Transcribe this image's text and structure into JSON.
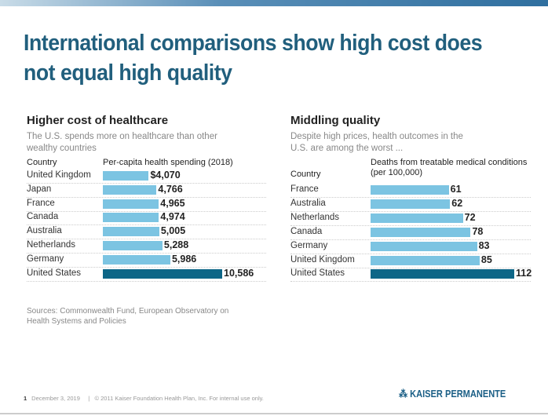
{
  "slide": {
    "title": "International comparisons show high cost does not equal high quality",
    "sources": "Sources: Commonwealth Fund, European Observatory on Health Systems and Policies",
    "footer": {
      "page": "1",
      "date": "December 3, 2019",
      "separator": "|",
      "copyright": "© 2011 Kaiser Foundation Health Plan, Inc. For internal use only."
    },
    "logo": "KAISER PERMANENTE"
  },
  "colors": {
    "bar": "#7cc4e2",
    "highlight": "#0d6687",
    "title": "#215f7d"
  },
  "chart_data": [
    {
      "type": "bar",
      "orientation": "horizontal",
      "title": "Higher cost of healthcare",
      "subtitle": "The U.S. spends more on healthcare than other wealthy countries",
      "category_header": "Country",
      "value_header": "Per-capita health spending (2018)",
      "categories": [
        "United Kingdom",
        "Japan",
        "France",
        "Canada",
        "Australia",
        "Netherlands",
        "Germany",
        "United States"
      ],
      "values": [
        4070,
        4766,
        4965,
        4974,
        5005,
        5288,
        5986,
        10586
      ],
      "labels": [
        "$4,070",
        "4,766",
        "4,965",
        "4,974",
        "5,005",
        "5,288",
        "5,986",
        "10,586"
      ],
      "highlight": "United States",
      "max": 10586
    },
    {
      "type": "bar",
      "orientation": "horizontal",
      "title": "Middling quality",
      "subtitle": "Despite high prices, health outcomes in the U.S. are among the worst ...",
      "category_header": "Country",
      "value_header": "Deaths from treatable medical conditions (per 100,000)",
      "categories": [
        "France",
        "Australia",
        "Netherlands",
        "Canada",
        "Germany",
        "United Kingdom",
        "United States"
      ],
      "values": [
        61,
        62,
        72,
        78,
        83,
        85,
        112
      ],
      "labels": [
        "61",
        "62",
        "72",
        "78",
        "83",
        "85",
        "112"
      ],
      "highlight": "United States",
      "max": 112
    }
  ]
}
